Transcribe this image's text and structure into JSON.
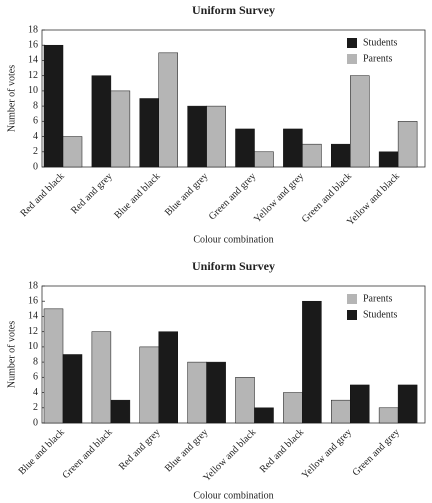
{
  "chart_data": [
    {
      "type": "bar",
      "title": "Uniform Survey",
      "y_label": "Number of votes",
      "x_label": "Colour combination",
      "categories": [
        "Red and black",
        "Red and grey",
        "Blue and black",
        "Blue and grey",
        "Green and grey",
        "Yellow and grey",
        "Green and black",
        "Yellow and black"
      ],
      "series": [
        {
          "name": "Students",
          "color": "#1a1a1a",
          "values": [
            16,
            12,
            9,
            8,
            5,
            5,
            3,
            2
          ]
        },
        {
          "name": "Parents",
          "color": "#b5b5b5",
          "values": [
            4,
            10,
            15,
            8,
            2,
            3,
            12,
            6
          ]
        }
      ],
      "ylim": [
        0,
        18
      ],
      "yticks": [
        0,
        2,
        4,
        6,
        8,
        10,
        12,
        14,
        16,
        18
      ],
      "grid": false,
      "legend": "upper right"
    },
    {
      "type": "bar",
      "title": "Uniform Survey",
      "y_label": "Number of votes",
      "x_label": "Colour combination",
      "categories": [
        "Blue and black",
        "Green and black",
        "Red and grey",
        "Blue and grey",
        "Yellow and black",
        "Red and black",
        "Yellow and grey",
        "Green and grey"
      ],
      "series": [
        {
          "name": "Parents",
          "color": "#b5b5b5",
          "values": [
            15,
            12,
            10,
            8,
            6,
            4,
            3,
            2
          ]
        },
        {
          "name": "Students",
          "color": "#1a1a1a",
          "values": [
            9,
            3,
            12,
            8,
            2,
            16,
            5,
            5
          ]
        }
      ],
      "ylim": [
        0,
        18
      ],
      "yticks": [
        0,
        2,
        4,
        6,
        8,
        10,
        12,
        14,
        16,
        18
      ],
      "grid": false,
      "legend": "upper right"
    }
  ]
}
